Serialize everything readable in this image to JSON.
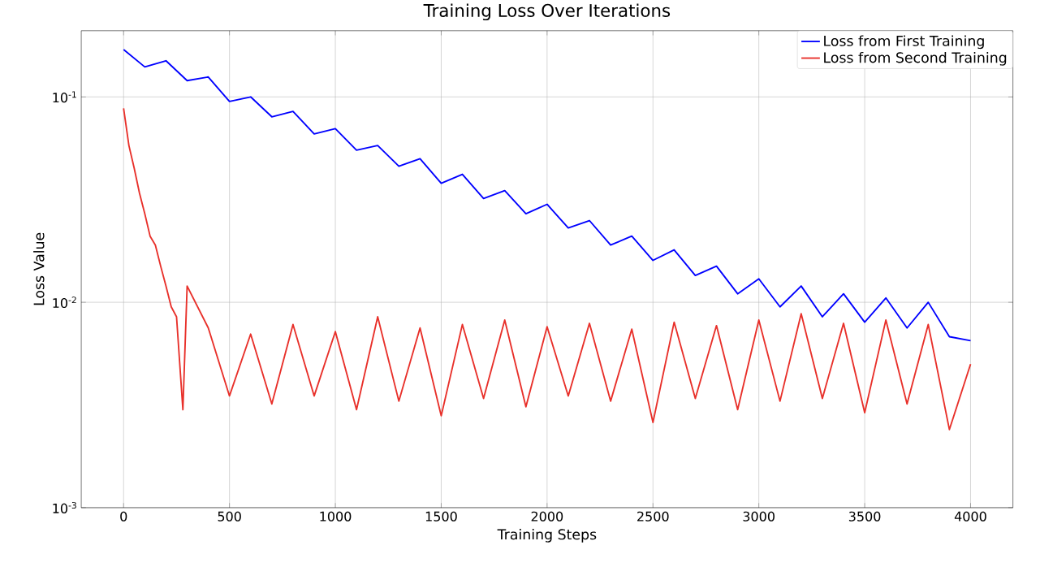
{
  "chart_data": {
    "type": "line",
    "title": "Training Loss Over Iterations",
    "xlabel": "Training Steps",
    "ylabel": "Loss Value",
    "x": [
      0,
      100,
      200,
      300,
      400,
      500,
      600,
      700,
      800,
      900,
      1000,
      1100,
      1200,
      1300,
      1400,
      1500,
      1600,
      1700,
      1800,
      1900,
      2000,
      2100,
      2200,
      2300,
      2400,
      2500,
      2600,
      2700,
      2800,
      2900,
      3000,
      3100,
      3200,
      3300,
      3400,
      3500,
      3600,
      3700,
      3800,
      3900,
      4000
    ],
    "series": [
      {
        "name": "Loss from First Training",
        "color": "#0000ff",
        "values": [
          0.17,
          0.14,
          0.15,
          0.12,
          0.125,
          0.095,
          0.1,
          0.08,
          0.085,
          0.066,
          0.07,
          0.055,
          0.058,
          0.046,
          0.05,
          0.038,
          0.042,
          0.032,
          0.035,
          0.027,
          0.03,
          0.023,
          0.025,
          0.019,
          0.021,
          0.016,
          0.018,
          0.0135,
          0.015,
          0.011,
          0.013,
          0.0095,
          0.012,
          0.0085,
          0.011,
          0.008,
          0.0105,
          0.0075,
          0.01,
          0.0068,
          0.0065
        ]
      },
      {
        "name": "Loss from Second Training",
        "color": "#e8302a",
        "x": [
          0,
          25,
          50,
          75,
          100,
          125,
          150,
          175,
          200,
          225,
          250,
          280,
          300,
          400,
          500,
          600,
          700,
          800,
          900,
          1000,
          1100,
          1200,
          1300,
          1400,
          1500,
          1600,
          1700,
          1800,
          1900,
          2000,
          2100,
          2200,
          2300,
          2400,
          2500,
          2600,
          2700,
          2800,
          2900,
          3000,
          3100,
          3200,
          3300,
          3400,
          3500,
          3600,
          3700,
          3800,
          3900,
          4000
        ],
        "values": [
          0.088,
          0.058,
          0.045,
          0.034,
          0.027,
          0.021,
          0.019,
          0.015,
          0.012,
          0.0095,
          0.0085,
          0.003,
          0.012,
          0.0075,
          0.0035,
          0.007,
          0.0032,
          0.0078,
          0.0035,
          0.0072,
          0.003,
          0.0085,
          0.0033,
          0.0075,
          0.0028,
          0.0078,
          0.0034,
          0.0082,
          0.0031,
          0.0076,
          0.0035,
          0.0079,
          0.0033,
          0.0074,
          0.0026,
          0.008,
          0.0034,
          0.0077,
          0.003,
          0.0082,
          0.0033,
          0.0088,
          0.0034,
          0.0079,
          0.0029,
          0.0082,
          0.0032,
          0.0078,
          0.0024,
          0.005
        ]
      }
    ],
    "xlim": [
      -200,
      4200
    ],
    "ylim": [
      0.001,
      0.21
    ],
    "xticks": [
      0,
      500,
      1000,
      1500,
      2000,
      2500,
      3000,
      3500,
      4000
    ],
    "yticks": [
      {
        "value": 0.001,
        "label": "10$^{-3}$"
      },
      {
        "value": 0.01,
        "label": "10$^{-2}$"
      },
      {
        "value": 0.1,
        "label": "10$^{-1}$"
      }
    ],
    "log": "y",
    "grid": true,
    "legend": "top right",
    "marker": "none",
    "line_style": "solid"
  }
}
